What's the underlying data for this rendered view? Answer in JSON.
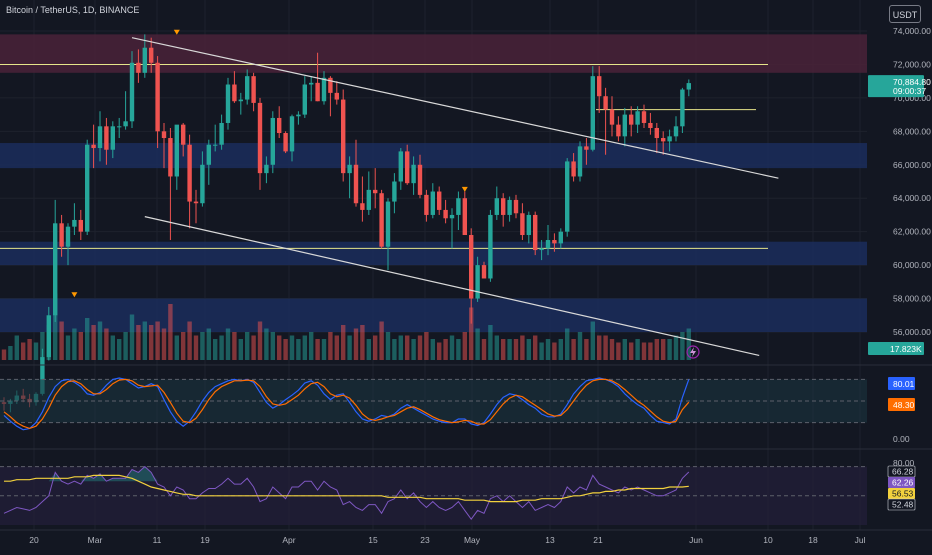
{
  "header": {
    "title": "Bitcoin / TetherUS, 1D, BINANCE",
    "currency_button": "USDT"
  },
  "colors": {
    "background": "#131722",
    "up": "#26a69a",
    "down": "#ef5350",
    "resistance_zone": "#4a2238",
    "support_zone": "#1b2d5c",
    "level_line": "#e6e58a",
    "trendline": "#d9d9d9",
    "stoch_k": "#2962ff",
    "stoch_d": "#ff6d00",
    "rsi": "#7e57c2",
    "rsi_ma": "#f2d13d"
  },
  "price_scale": {
    "ticks": [
      "74,000.00",
      "72,000.00",
      "70,000.00",
      "68,000.00",
      "66,000.00",
      "64,000.00",
      "62,000.00",
      "60,000.00",
      "58,000.00",
      "56,000.00"
    ],
    "current_price": "70,884.80",
    "countdown": "09:00:37",
    "volume_label": "17.823K"
  },
  "oscillator1_scale": {
    "ticks": [
      "0.00"
    ],
    "k_value": "80.01",
    "d_value": "48.30"
  },
  "oscillator2_scale": {
    "ticks": [
      "80.00"
    ],
    "labels": [
      "66.28",
      "62.26",
      "56.53",
      "52.48"
    ]
  },
  "time_axis": {
    "labels": [
      "20",
      "Mar",
      "11",
      "19",
      "Apr",
      "15",
      "23",
      "May",
      "13",
      "21",
      "Jun",
      "10",
      "18",
      "Jul"
    ]
  },
  "chart_data": {
    "type": "candlestick",
    "title": "Bitcoin / TetherUS, 1D, BINANCE",
    "ylim": [
      54500,
      75200
    ],
    "candles_ohlc": [
      [
        51800,
        52100,
        51300,
        51700
      ],
      [
        51700,
        52000,
        51200,
        51900
      ],
      [
        51900,
        52500,
        51700,
        52200
      ],
      [
        52200,
        52600,
        51800,
        52000
      ],
      [
        52000,
        52300,
        51500,
        51800
      ],
      [
        51800,
        52400,
        51600,
        52300
      ],
      [
        52300,
        55000,
        52200,
        54500
      ],
      [
        54500,
        57500,
        54300,
        57000
      ],
      [
        57000,
        63900,
        56600,
        62500
      ],
      [
        62500,
        63000,
        60500,
        61100
      ],
      [
        61100,
        62500,
        60000,
        62300
      ],
      [
        62300,
        63700,
        61800,
        62700
      ],
      [
        62700,
        63300,
        61500,
        62000
      ],
      [
        62000,
        67500,
        61800,
        67200
      ],
      [
        67200,
        68400,
        65800,
        67000
      ],
      [
        67000,
        69200,
        66200,
        68300
      ],
      [
        68300,
        68800,
        66000,
        66900
      ],
      [
        66900,
        68600,
        66400,
        68300
      ],
      [
        68300,
        68800,
        67600,
        68300
      ],
      [
        68300,
        70400,
        68100,
        68600
      ],
      [
        68600,
        72800,
        68200,
        72100
      ],
      [
        72100,
        72900,
        70900,
        71500
      ],
      [
        71500,
        73800,
        71200,
        73000
      ],
      [
        73000,
        73600,
        71500,
        72100
      ],
      [
        72100,
        72500,
        67000,
        68000
      ],
      [
        68000,
        68500,
        65800,
        67600
      ],
      [
        67600,
        68200,
        61500,
        65300
      ],
      [
        65300,
        68100,
        64500,
        68400
      ],
      [
        68400,
        68500,
        66500,
        67200
      ],
      [
        67200,
        67800,
        62200,
        63800
      ],
      [
        63800,
        64500,
        62500,
        63700
      ],
      [
        63700,
        66800,
        63500,
        66000
      ],
      [
        66000,
        67500,
        64800,
        67200
      ],
      [
        67200,
        68400,
        66800,
        67200
      ],
      [
        67200,
        69000,
        66900,
        68500
      ],
      [
        68500,
        71200,
        68100,
        70800
      ],
      [
        70800,
        71600,
        69700,
        69800
      ],
      [
        69800,
        70300,
        69000,
        69900
      ],
      [
        69900,
        71700,
        69600,
        71300
      ],
      [
        71300,
        71500,
        69200,
        69700
      ],
      [
        69700,
        70000,
        64500,
        65500
      ],
      [
        65500,
        66500,
        64900,
        66000
      ],
      [
        66000,
        69200,
        65500,
        68800
      ],
      [
        68800,
        69500,
        67600,
        67900
      ],
      [
        67900,
        68000,
        66700,
        66800
      ],
      [
        66800,
        69000,
        66200,
        68900
      ],
      [
        68900,
        69200,
        68400,
        69000
      ],
      [
        69000,
        71300,
        68800,
        70800
      ],
      [
        70800,
        71300,
        69800,
        70900
      ],
      [
        70900,
        72700,
        69800,
        69800
      ],
      [
        69800,
        71600,
        69600,
        71200
      ],
      [
        71200,
        71300,
        68900,
        70300
      ],
      [
        70300,
        71000,
        69600,
        69900
      ],
      [
        69900,
        70500,
        65000,
        65500
      ],
      [
        65500,
        66500,
        64000,
        66000
      ],
      [
        66000,
        67500,
        63500,
        63700
      ],
      [
        63700,
        65300,
        62600,
        63300
      ],
      [
        63300,
        65600,
        63000,
        64500
      ],
      [
        64500,
        65800,
        63400,
        64300
      ],
      [
        64300,
        64500,
        61000,
        61100
      ],
      [
        61100,
        64000,
        59700,
        63800
      ],
      [
        63800,
        65500,
        63100,
        65000
      ],
      [
        65000,
        67000,
        64500,
        66800
      ],
      [
        66800,
        67200,
        64800,
        64900
      ],
      [
        64900,
        66500,
        64200,
        66000
      ],
      [
        66000,
        66600,
        64000,
        64200
      ],
      [
        64200,
        64500,
        62600,
        63000
      ],
      [
        63000,
        64900,
        62800,
        64400
      ],
      [
        64400,
        64700,
        63000,
        63300
      ],
      [
        63300,
        63900,
        62500,
        62800
      ],
      [
        62800,
        63400,
        61000,
        63000
      ],
      [
        63000,
        64400,
        62100,
        64000
      ],
      [
        64000,
        64400,
        61800,
        61800
      ],
      [
        61800,
        62200,
        56500,
        58000
      ],
      [
        58000,
        60500,
        57800,
        60000
      ],
      [
        60000,
        60200,
        59500,
        59200
      ],
      [
        59200,
        63300,
        59000,
        63000
      ],
      [
        63000,
        64700,
        62700,
        64000
      ],
      [
        64000,
        64300,
        62300,
        63000
      ],
      [
        63000,
        64100,
        62600,
        63900
      ],
      [
        63900,
        64200,
        62800,
        63100
      ],
      [
        63100,
        63700,
        61500,
        61800
      ],
      [
        61800,
        63200,
        61300,
        63000
      ],
      [
        63000,
        63200,
        60600,
        60900
      ],
      [
        60900,
        61500,
        60300,
        61000
      ],
      [
        61000,
        62400,
        60600,
        61500
      ],
      [
        61500,
        61900,
        60800,
        61300
      ],
      [
        61300,
        62200,
        61000,
        62000
      ],
      [
        62000,
        66400,
        61700,
        66200
      ],
      [
        66200,
        66700,
        65000,
        65300
      ],
      [
        65300,
        67400,
        65000,
        67100
      ],
      [
        67100,
        67600,
        66000,
        66900
      ],
      [
        66900,
        71900,
        66800,
        71300
      ],
      [
        71300,
        71900,
        69100,
        70100
      ],
      [
        70100,
        70600,
        66600,
        69300
      ],
      [
        69300,
        70100,
        67700,
        68400
      ],
      [
        68400,
        68900,
        67400,
        67700
      ],
      [
        67700,
        69400,
        67100,
        69000
      ],
      [
        69000,
        69500,
        67700,
        68400
      ],
      [
        68400,
        69500,
        67900,
        69200
      ],
      [
        69200,
        69600,
        68200,
        68500
      ],
      [
        68500,
        69100,
        67800,
        68200
      ],
      [
        68200,
        68500,
        66700,
        67600
      ],
      [
        67600,
        68000,
        66600,
        67400
      ],
      [
        67400,
        68100,
        66800,
        67700
      ],
      [
        67700,
        68900,
        67400,
        68300
      ],
      [
        68300,
        70600,
        67900,
        70500
      ],
      [
        70500,
        71100,
        70100,
        70885
      ]
    ],
    "volume_relative": [
      0.15,
      0.2,
      0.35,
      0.25,
      0.3,
      0.25,
      0.4,
      0.5,
      0.95,
      0.55,
      0.35,
      0.45,
      0.4,
      0.6,
      0.5,
      0.55,
      0.45,
      0.35,
      0.3,
      0.4,
      0.65,
      0.5,
      0.55,
      0.5,
      0.55,
      0.45,
      0.8,
      0.35,
      0.4,
      0.55,
      0.35,
      0.4,
      0.45,
      0.3,
      0.35,
      0.45,
      0.4,
      0.3,
      0.4,
      0.35,
      0.55,
      0.45,
      0.4,
      0.35,
      0.3,
      0.35,
      0.3,
      0.35,
      0.4,
      0.3,
      0.3,
      0.4,
      0.35,
      0.5,
      0.35,
      0.45,
      0.5,
      0.3,
      0.35,
      0.55,
      0.4,
      0.3,
      0.35,
      0.35,
      0.3,
      0.35,
      0.4,
      0.3,
      0.25,
      0.3,
      0.35,
      0.3,
      0.4,
      0.75,
      0.45,
      0.3,
      0.5,
      0.35,
      0.3,
      0.3,
      0.3,
      0.35,
      0.3,
      0.35,
      0.25,
      0.3,
      0.25,
      0.3,
      0.45,
      0.3,
      0.4,
      0.3,
      0.55,
      0.35,
      0.35,
      0.3,
      0.25,
      0.3,
      0.25,
      0.3,
      0.25,
      0.25,
      0.3,
      0.3,
      0.3,
      0.35,
      0.4,
      0.45
    ],
    "zones": [
      {
        "kind": "resistance",
        "from": 71500,
        "to": 73800
      },
      {
        "kind": "support",
        "from": 65800,
        "to": 67300
      },
      {
        "kind": "support",
        "from": 60000,
        "to": 61400
      },
      {
        "kind": "support",
        "from": 56000,
        "to": 58000
      }
    ],
    "levels": [
      72000,
      69300,
      61000
    ],
    "trendlines": [
      {
        "from": [
          20,
          73600
        ],
        "to": [
          121,
          65200
        ]
      },
      {
        "from": [
          22,
          62900
        ],
        "to": [
          118,
          54600
        ]
      }
    ],
    "stochastic": {
      "k": [
        30,
        22,
        15,
        10,
        12,
        20,
        35,
        55,
        70,
        78,
        80,
        76,
        70,
        60,
        58,
        62,
        72,
        80,
        82,
        80,
        74,
        68,
        70,
        74,
        70,
        52,
        35,
        22,
        15,
        22,
        35,
        50,
        62,
        70,
        74,
        78,
        80,
        78,
        80,
        76,
        62,
        48,
        40,
        45,
        52,
        58,
        65,
        75,
        78,
        72,
        60,
        52,
        58,
        60,
        48,
        35,
        25,
        22,
        25,
        30,
        28,
        32,
        40,
        45,
        40,
        35,
        30,
        25,
        22,
        20,
        20,
        25,
        25,
        18,
        16,
        20,
        32,
        45,
        55,
        60,
        58,
        52,
        45,
        40,
        32,
        28,
        28,
        32,
        45,
        60,
        70,
        78,
        80,
        82,
        80,
        76,
        70,
        60,
        52,
        45,
        40,
        30,
        22,
        20,
        18,
        25,
        55,
        80
      ],
      "d": [
        35,
        28,
        20,
        15,
        12,
        15,
        25,
        40,
        58,
        70,
        77,
        78,
        74,
        66,
        60,
        60,
        66,
        74,
        79,
        80,
        78,
        72,
        70,
        71,
        72,
        62,
        48,
        33,
        22,
        20,
        26,
        38,
        52,
        63,
        70,
        74,
        78,
        78,
        79,
        78,
        70,
        56,
        46,
        44,
        46,
        52,
        58,
        67,
        74,
        76,
        70,
        60,
        56,
        58,
        54,
        44,
        32,
        25,
        23,
        25,
        28,
        30,
        35,
        40,
        42,
        38,
        33,
        28,
        24,
        22,
        20,
        21,
        23,
        22,
        18,
        18,
        24,
        35,
        46,
        54,
        58,
        56,
        50,
        44,
        38,
        32,
        29,
        30,
        38,
        50,
        62,
        72,
        78,
        80,
        80,
        78,
        73,
        66,
        58,
        50,
        44,
        36,
        28,
        22,
        20,
        22,
        38,
        48.3
      ]
    },
    "rsi": {
      "value": [
        38,
        40,
        42,
        41,
        40,
        42,
        46,
        50,
        66,
        60,
        58,
        60,
        58,
        64,
        62,
        65,
        60,
        62,
        62,
        62,
        68,
        66,
        70,
        66,
        58,
        56,
        50,
        56,
        54,
        48,
        48,
        52,
        55,
        55,
        58,
        62,
        58,
        58,
        62,
        56,
        46,
        48,
        56,
        52,
        48,
        56,
        56,
        60,
        60,
        54,
        60,
        56,
        54,
        44,
        46,
        42,
        40,
        44,
        44,
        38,
        46,
        48,
        54,
        48,
        52,
        46,
        42,
        46,
        42,
        40,
        42,
        46,
        40,
        34,
        40,
        38,
        48,
        50,
        46,
        50,
        46,
        42,
        46,
        40,
        42,
        44,
        42,
        46,
        56,
        52,
        56,
        54,
        64,
        58,
        56,
        54,
        52,
        56,
        54,
        56,
        54,
        52,
        50,
        50,
        52,
        54,
        62,
        66.28
      ],
      "ma": [
        60,
        60,
        61,
        61,
        61,
        62,
        62,
        62,
        62,
        62,
        62,
        63,
        63,
        63,
        64,
        64,
        64,
        64,
        64,
        63,
        62,
        60,
        58,
        56,
        55,
        54,
        53,
        52,
        51,
        51,
        50,
        50,
        50,
        50,
        50,
        50,
        50,
        50,
        50,
        50,
        50,
        50,
        50,
        50,
        50,
        50,
        50,
        50,
        50,
        50,
        50,
        50,
        50,
        50,
        50,
        50,
        50,
        50,
        50,
        50,
        49,
        49,
        49,
        49,
        49,
        49,
        48,
        48,
        48,
        48,
        48,
        48,
        47,
        47,
        47,
        47,
        46,
        46,
        46,
        46,
        46,
        47,
        47,
        47,
        48,
        48,
        48,
        48,
        49,
        50,
        50,
        51,
        52,
        52,
        53,
        53,
        54,
        54,
        55,
        55,
        55,
        55,
        55,
        55,
        56,
        56,
        56,
        56.53
      ]
    }
  }
}
